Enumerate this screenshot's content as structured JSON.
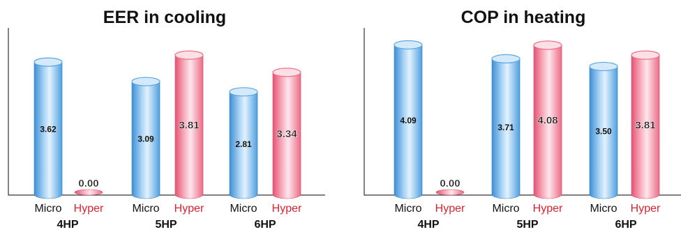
{
  "chart_data": [
    {
      "type": "bar",
      "title": "EER in cooling",
      "groups": [
        "4HP",
        "5HP",
        "6HP"
      ],
      "series": [
        {
          "name": "Micro",
          "values": [
            3.62,
            3.09,
            2.81
          ]
        },
        {
          "name": "Hyper",
          "values": [
            0.0,
            3.81,
            3.34
          ]
        }
      ],
      "ylim": [
        0,
        4.4
      ]
    },
    {
      "type": "bar",
      "title": "COP in heating",
      "groups": [
        "4HP",
        "5HP",
        "6HP"
      ],
      "series": [
        {
          "name": "Micro",
          "values": [
            4.09,
            3.71,
            3.5
          ]
        },
        {
          "name": "Hyper",
          "values": [
            0.0,
            4.08,
            3.81
          ]
        }
      ],
      "ylim": [
        0,
        4.4
      ]
    }
  ],
  "colors": {
    "micro": "#5aa6e3",
    "micro_light": "#d4eafb",
    "micro_dark": "#2f7fc4",
    "hyper": "#ef6f88",
    "hyper_light": "#fde0e6",
    "hyper_dark": "#d94866",
    "hyper_text": "#e0202e",
    "text": "#111111"
  }
}
